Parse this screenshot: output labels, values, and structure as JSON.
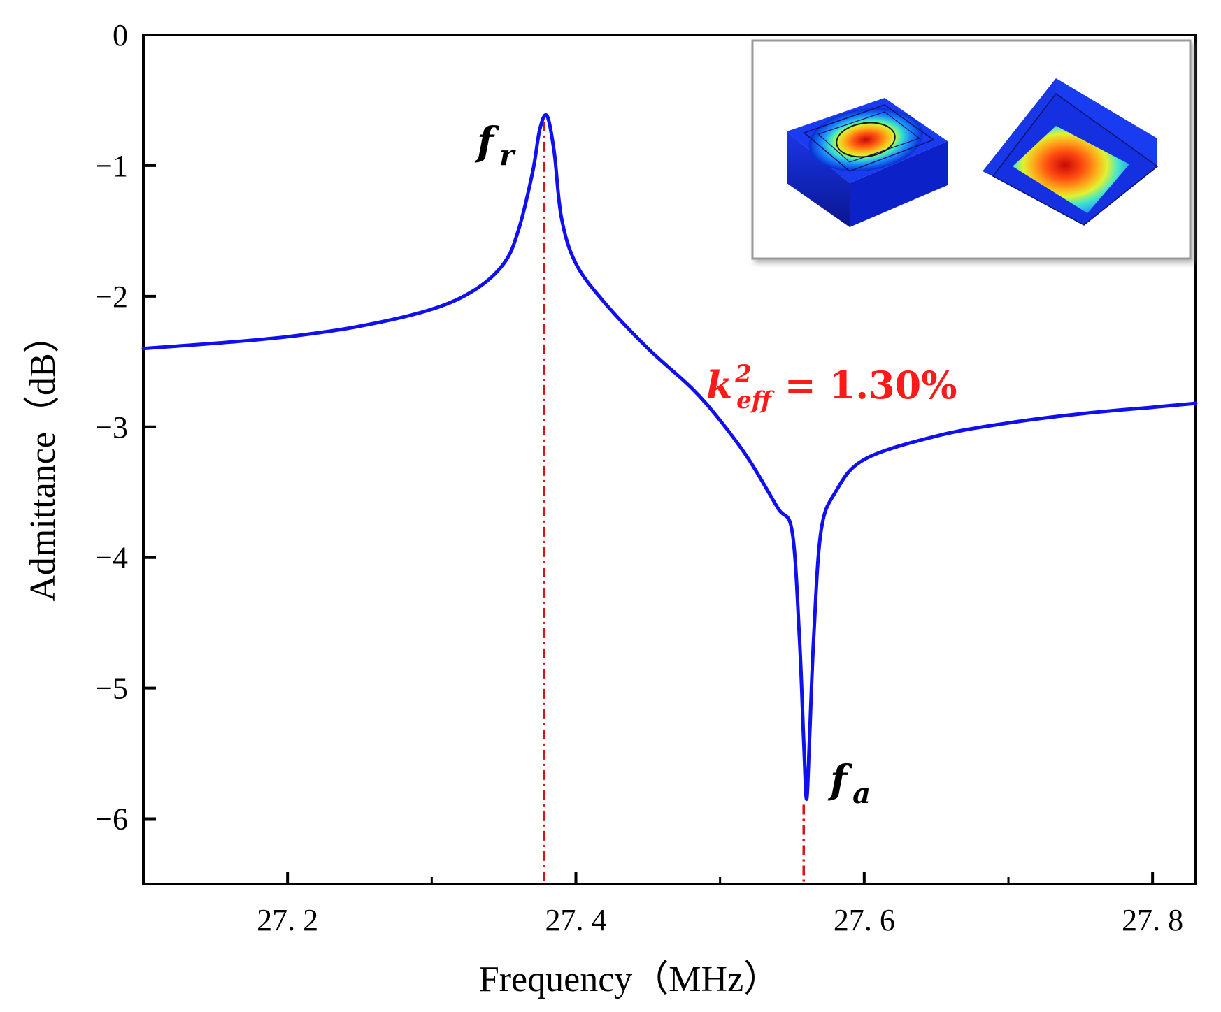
{
  "chart_data": {
    "type": "line",
    "xlabel": "Frequency（MHz）",
    "ylabel": "Admittance（dB）",
    "xlim": [
      27.1,
      27.83
    ],
    "ylim": [
      -6.5,
      0
    ],
    "x_ticks": [
      27.2,
      27.4,
      27.6,
      27.8
    ],
    "x_tick_labels": [
      "27. 2",
      "27. 4",
      "27. 6",
      "27. 8"
    ],
    "y_ticks": [
      0,
      -1,
      -2,
      -3,
      -4,
      -5,
      -6
    ],
    "y_tick_labels": [
      "0",
      "−1",
      "−2",
      "−3",
      "−4",
      "−5",
      "−6"
    ],
    "series": [
      {
        "name": "Admittance",
        "color": "#1010ee",
        "x": [
          27.1,
          27.15,
          27.2,
          27.25,
          27.3,
          27.33,
          27.35,
          27.36,
          27.37,
          27.375,
          27.38,
          27.385,
          27.39,
          27.4,
          27.42,
          27.45,
          27.48,
          27.5,
          27.52,
          27.54,
          27.55,
          27.555,
          27.558,
          27.56,
          27.562,
          27.565,
          27.57,
          27.58,
          27.6,
          27.65,
          27.7,
          27.75,
          27.8,
          27.83
        ],
        "y": [
          -2.4,
          -2.36,
          -2.31,
          -2.23,
          -2.1,
          -1.95,
          -1.75,
          -1.5,
          -1.05,
          -0.72,
          -0.62,
          -0.9,
          -1.4,
          -1.75,
          -2.05,
          -2.4,
          -2.7,
          -2.95,
          -3.25,
          -3.62,
          -3.8,
          -4.6,
          -5.4,
          -5.85,
          -5.4,
          -4.6,
          -3.8,
          -3.5,
          -3.25,
          -3.07,
          -2.97,
          -2.9,
          -2.85,
          -2.82
        ]
      }
    ],
    "annotations": [
      {
        "text": "f",
        "sub": "r",
        "x": 27.38,
        "y": -0.62,
        "role": "resonance frequency"
      },
      {
        "text": "f",
        "sub": "a",
        "x": 27.56,
        "y": -5.85,
        "role": "anti-resonance frequency"
      },
      {
        "text": "k",
        "sup": "2",
        "sub": "eff",
        "rest": " = 1.30%",
        "color": "#ff1a1a",
        "role": "effective coupling coefficient"
      }
    ],
    "markers": [
      {
        "x": 27.378,
        "color": "#e01010",
        "style": "dash-dot",
        "from_y": -0.62,
        "to_y": -6.5
      },
      {
        "x": 27.558,
        "color": "#e01010",
        "style": "dash-dot",
        "from_y": -5.85,
        "to_y": -6.5
      }
    ],
    "inset": {
      "description_role": "mode shape simulation",
      "colormap": [
        "#0a1aa8",
        "#1a6dff",
        "#1ed8e6",
        "#8cf26a",
        "#f6e81c",
        "#ff8a10",
        "#e81010"
      ]
    }
  }
}
